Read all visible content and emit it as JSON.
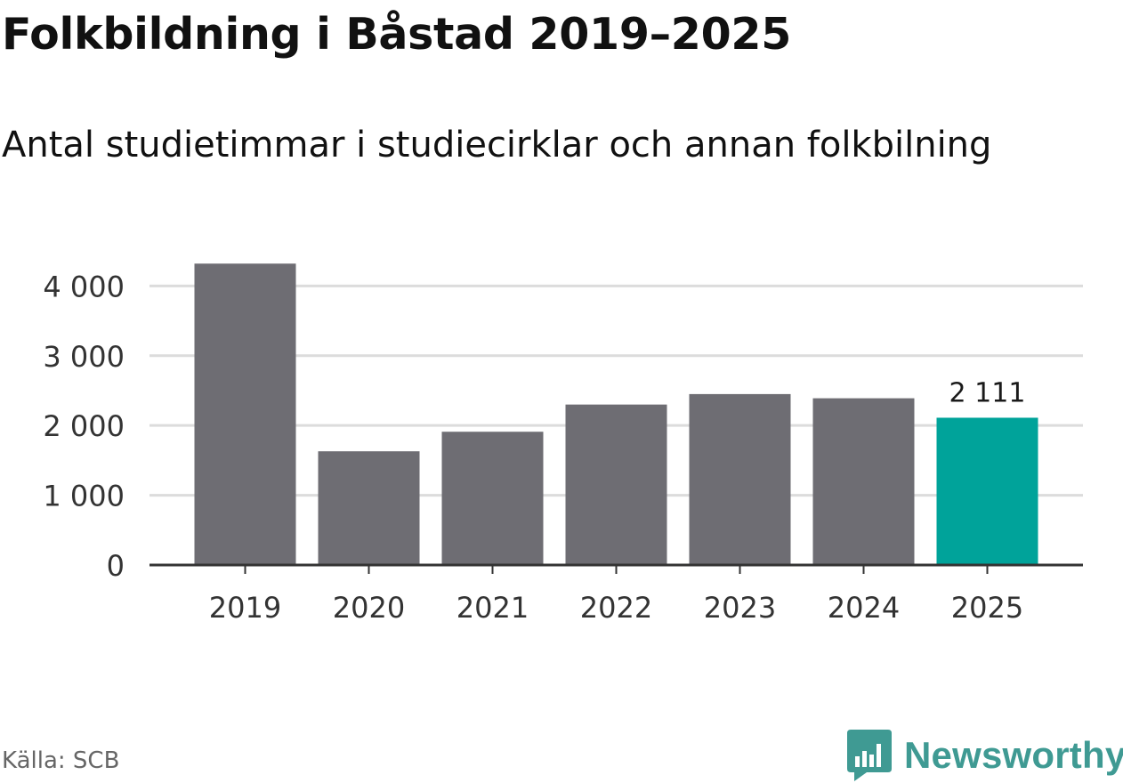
{
  "title": "Folkbildning i Båstad 2019–2025",
  "subtitle": "Antal studietimmar i studiecirklar och annan folkbilning",
  "source": "Källa: SCB",
  "brand": {
    "name": "Newsworthy",
    "icon": "newsworthy-logo-icon",
    "color": "#3f9a93"
  },
  "colors": {
    "bar": "#6e6d73",
    "highlight": "#00a39a",
    "grid": "#dcdcdc",
    "axis": "#333333"
  },
  "chart_data": {
    "type": "bar",
    "categories": [
      "2019",
      "2020",
      "2021",
      "2022",
      "2023",
      "2024",
      "2025"
    ],
    "values": [
      4320,
      1630,
      1910,
      2300,
      2450,
      2390,
      2111
    ],
    "highlight_index": 6,
    "data_labels": [
      {
        "index": 6,
        "text": "2 111"
      }
    ],
    "ylim": [
      0,
      4400
    ],
    "yticks": [
      {
        "value": 0,
        "label": "0"
      },
      {
        "value": 1000,
        "label": "1 000"
      },
      {
        "value": 2000,
        "label": "2 000"
      },
      {
        "value": 3000,
        "label": "3 000"
      },
      {
        "value": 4000,
        "label": "4 000"
      }
    ],
    "grid": true,
    "legend": "none",
    "xlabel": "",
    "ylabel": ""
  }
}
